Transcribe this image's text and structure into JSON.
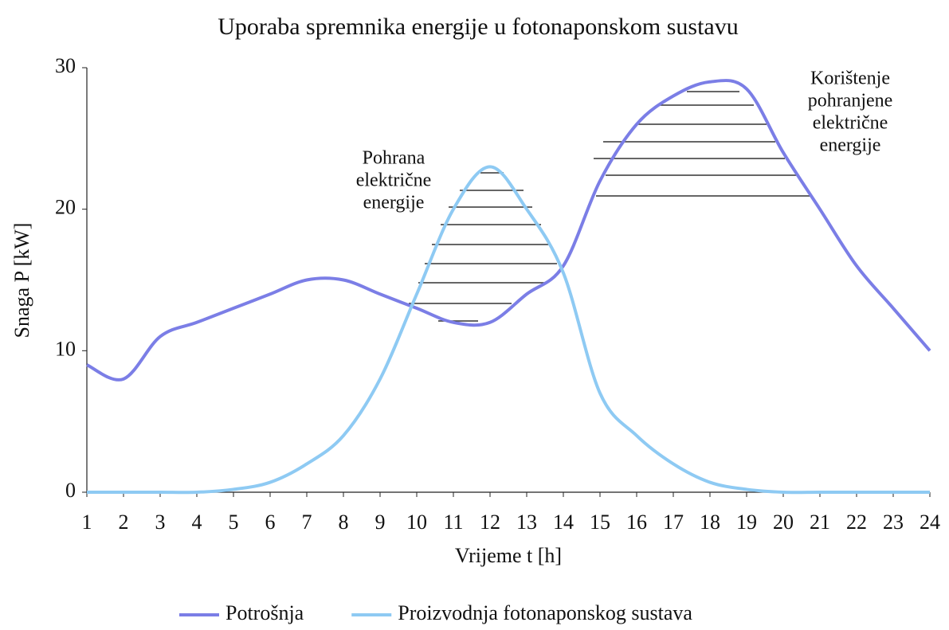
{
  "chart_data": {
    "type": "line",
    "title": "Uporaba spremnika energije u fotonaponskom sustavu",
    "xlabel": "Vrijeme t [h]",
    "ylabel": "Snaga P [kW]",
    "x": [
      1,
      2,
      3,
      4,
      5,
      6,
      7,
      8,
      9,
      10,
      11,
      12,
      13,
      14,
      15,
      16,
      17,
      18,
      19,
      20,
      21,
      22,
      23,
      24
    ],
    "series": [
      {
        "name": "Potrošnja",
        "color": "#7b7ee6",
        "values": [
          9,
          8,
          11,
          12,
          13,
          14,
          15,
          15,
          14,
          13,
          12,
          12,
          14,
          16,
          22,
          26,
          28,
          29,
          28.5,
          24,
          20,
          16,
          13,
          10
        ]
      },
      {
        "name": "Proizvodnja fotonaponskog sustava",
        "color": "#8ecaf3",
        "values": [
          0,
          0,
          0,
          0,
          0.2,
          0.7,
          2,
          4,
          8,
          14,
          20,
          23,
          20,
          15.5,
          7,
          4,
          2,
          0.7,
          0.2,
          0,
          0,
          0,
          0,
          0
        ]
      }
    ],
    "xlim": [
      1,
      24
    ],
    "xticks": [
      1,
      2,
      3,
      4,
      5,
      6,
      7,
      8,
      9,
      10,
      11,
      12,
      13,
      14,
      15,
      16,
      17,
      18,
      19,
      20,
      21,
      22,
      23,
      24
    ],
    "ylim": [
      0,
      30
    ],
    "yticks": [
      0,
      10,
      20,
      30
    ],
    "grid": false,
    "legend": "bottom",
    "annotations": [
      {
        "lines": [
          "Pohrana",
          "električne",
          "energije"
        ]
      },
      {
        "lines": [
          "Korištenje",
          "pohranjene",
          "električne",
          "energije"
        ]
      }
    ]
  }
}
